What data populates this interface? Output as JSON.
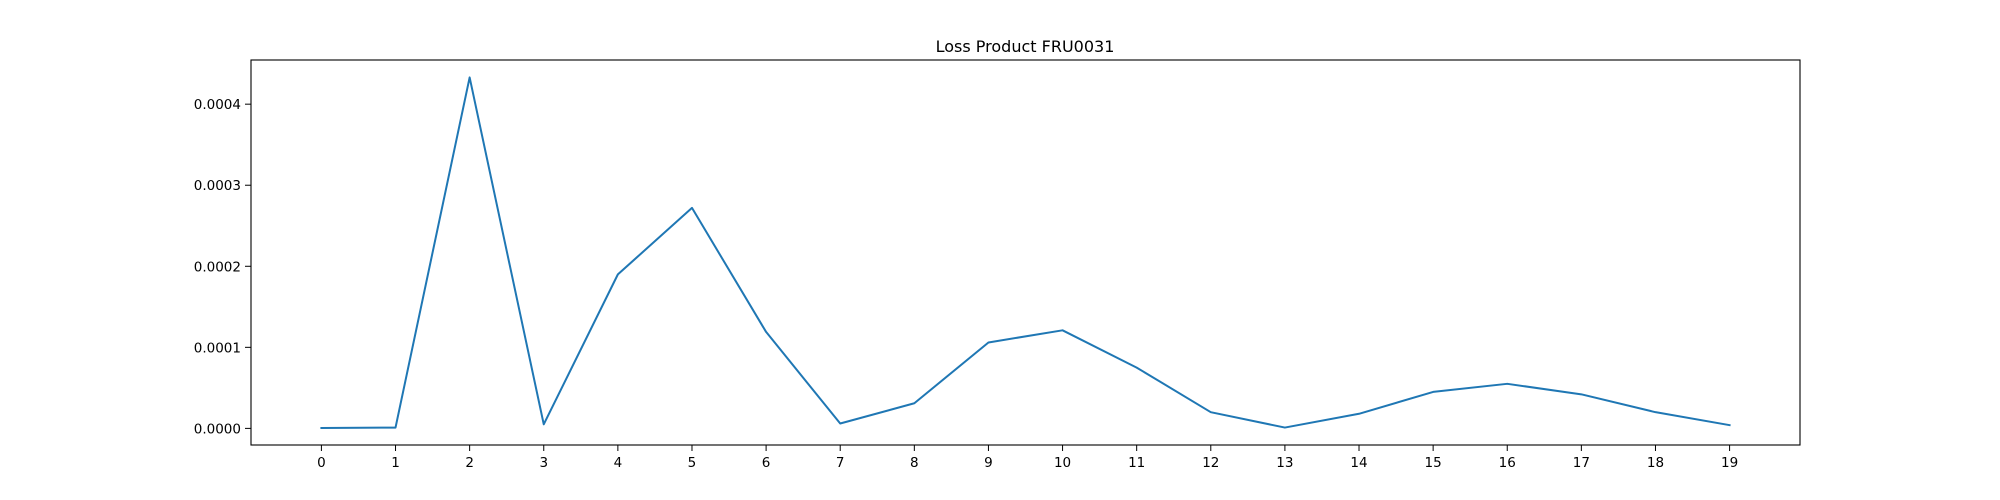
{
  "chart_data": {
    "type": "line",
    "title": "Loss Product FRU0031",
    "xlabel": "",
    "ylabel": "",
    "x": [
      0,
      1,
      2,
      3,
      4,
      5,
      6,
      7,
      8,
      9,
      10,
      11,
      12,
      13,
      14,
      15,
      16,
      17,
      18,
      19
    ],
    "x_ticks": [
      "0",
      "1",
      "2",
      "3",
      "4",
      "5",
      "6",
      "7",
      "8",
      "9",
      "10",
      "11",
      "12",
      "13",
      "14",
      "15",
      "16",
      "17",
      "18",
      "19"
    ],
    "y_ticks": [
      "0.0000",
      "0.0001",
      "0.0002",
      "0.0003",
      "0.0004"
    ],
    "y_tick_values": [
      0,
      0.0001,
      0.0002,
      0.0003,
      0.0004
    ],
    "xlim": [
      -0.95,
      19.95
    ],
    "ylim": [
      -2.05e-05,
      0.0004545
    ],
    "grid": false,
    "series": [
      {
        "color": "#1f77b4",
        "values": [
          5e-07,
          1e-06,
          0.000433,
          5e-06,
          0.00019,
          0.000272,
          0.000119,
          6e-06,
          3.1e-05,
          0.000106,
          0.000121,
          7.5e-05,
          2e-05,
          1e-06,
          1.8e-05,
          4.5e-05,
          5.5e-05,
          4.2e-05,
          2e-05,
          4e-06
        ]
      }
    ]
  }
}
